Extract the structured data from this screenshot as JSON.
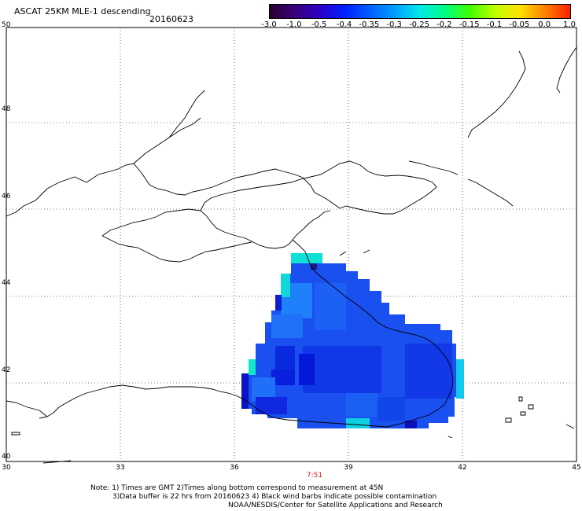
{
  "header": {
    "title": "ASCAT 25KM MLE-1 descending",
    "date": "20160623"
  },
  "colorbar": {
    "labels": [
      "-3.0",
      "-1.0",
      "-0.5",
      "-0.4",
      "-0.35",
      "-0.3",
      "-0.25",
      "-0.2",
      "-0.15",
      "-0.1",
      "-0.05",
      "0.0",
      "1.0"
    ],
    "colors": [
      "#2a0030",
      "#3a007a",
      "#2a00c8",
      "#0020ff",
      "#0060ff",
      "#00a0ff",
      "#00e8e8",
      "#00ff80",
      "#40ff00",
      "#c0ff00",
      "#ffe000",
      "#ff8000",
      "#ff2000"
    ]
  },
  "map": {
    "lon_ticks": [
      "30",
      "33",
      "36",
      "39",
      "42",
      "45"
    ],
    "lat_ticks": [
      "50",
      "48",
      "46",
      "44",
      "42",
      "40"
    ],
    "lon_range": [
      30,
      45
    ],
    "lat_range": [
      40,
      50
    ],
    "time_label": "7:51",
    "grid": "dotted"
  },
  "notes": {
    "line1": "Note: 1) Times are GMT 2)Times along bottom correspond to measurement at 45N",
    "line2": "3)Data buffer is 22 hrs from 20160623 4) Black wind barbs indicate possible contamination",
    "line3": "NOAA/NESDIS/Center for Satellite Applications and Research"
  }
}
